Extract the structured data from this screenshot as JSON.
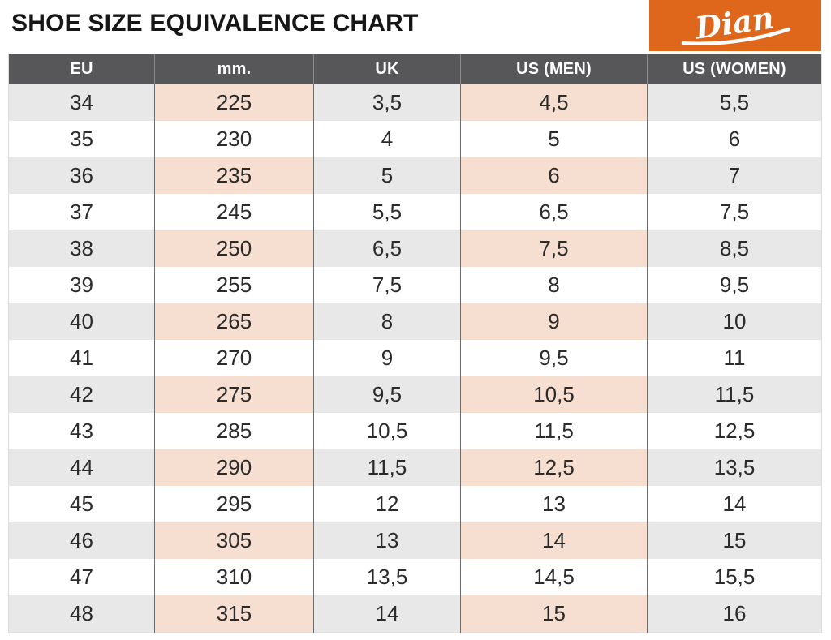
{
  "header": {
    "title": "SHOE SIZE EQUIVALENCE CHART"
  },
  "brand": {
    "name": "Dian",
    "background_color": "#DE671C",
    "text_color": "#FFFFFF"
  },
  "chart_data": {
    "type": "table",
    "title": "SHOE SIZE EQUIVALENCE CHART",
    "columns": [
      "EU",
      "mm.",
      "UK",
      "US (MEN)",
      "US (WOMEN)"
    ],
    "rows": [
      [
        "34",
        "225",
        "3,5",
        "4,5",
        "5,5"
      ],
      [
        "35",
        "230",
        "4",
        "5",
        "6"
      ],
      [
        "36",
        "235",
        "5",
        "6",
        "7"
      ],
      [
        "37",
        "245",
        "5,5",
        "6,5",
        "7,5"
      ],
      [
        "38",
        "250",
        "6,5",
        "7,5",
        "8,5"
      ],
      [
        "39",
        "255",
        "7,5",
        "8",
        "9,5"
      ],
      [
        "40",
        "265",
        "8",
        "9",
        "10"
      ],
      [
        "41",
        "270",
        "9",
        "9,5",
        "11"
      ],
      [
        "42",
        "275",
        "9,5",
        "10,5",
        "11,5"
      ],
      [
        "43",
        "285",
        "10,5",
        "11,5",
        "12,5"
      ],
      [
        "44",
        "290",
        "11,5",
        "12,5",
        "13,5"
      ],
      [
        "45",
        "295",
        "12",
        "13",
        "14"
      ],
      [
        "46",
        "305",
        "13",
        "14",
        "15"
      ],
      [
        "47",
        "310",
        "13,5",
        "14,5",
        "15,5"
      ],
      [
        "48",
        "315",
        "14",
        "15",
        "16"
      ]
    ],
    "layout": {
      "striped_rows": "EU 34, 36, 38, 40, 42, 44, 46, 48 (alternating, starting with first data row)",
      "stripe_gray_columns": [
        "EU",
        "UK",
        "US (WOMEN)"
      ],
      "stripe_pink_columns": [
        "mm.",
        "US (MEN)"
      ]
    }
  },
  "colors": {
    "header_row_bg": "#57575A",
    "header_row_text": "#FFFFFF",
    "stripe_gray": "#E8E8E9",
    "stripe_pink": "#F6DED0",
    "cell_text": "#2B2B2B",
    "column_divider": "#6B6C6F",
    "brand_orange": "#DE671C"
  }
}
